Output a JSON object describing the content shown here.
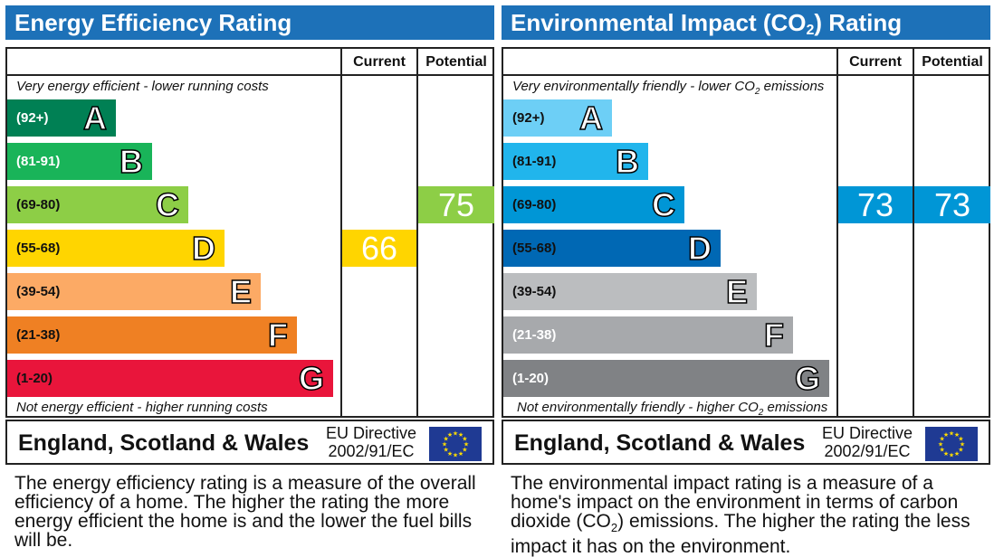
{
  "panels": [
    {
      "id": "energy",
      "title": "Energy Efficiency Rating",
      "col_current": "Current",
      "col_potential": "Potential",
      "top_note": "Very energy efficient - lower running costs",
      "bottom_note": "Not energy efficient - higher running costs",
      "region": "England, Scotland & Wales",
      "directive_line1": "EU Directive",
      "directive_line2": "2002/91/EC",
      "description": "The energy efficiency rating is a measure of the overall efficiency of a home. The higher the rating the more energy efficient the home is and the lower the fuel bills will be."
    },
    {
      "id": "env",
      "title_pre": "Environmental Impact (CO",
      "title_sub": "2",
      "title_post": ") Rating",
      "col_current": "Current",
      "col_potential": "Potential",
      "top_note_pre": "Very environmentally friendly - lower CO",
      "top_note_sub": "2",
      "top_note_post": " emissions",
      "bottom_note_pre": "Not environmentally friendly - higher CO",
      "bottom_note_sub": "2",
      "bottom_note_post": " emissions",
      "region": "England, Scotland & Wales",
      "directive_line1": "EU Directive",
      "directive_line2": "2002/91/EC",
      "description_pre": "The environmental impact rating is a measure of a home's impact on the environment in terms of carbon dioxide (CO",
      "description_sub": "2",
      "description_post": ") emissions. The higher the rating the less impact it has on the environment."
    }
  ],
  "chart_data": [
    {
      "type": "bar",
      "title": "Energy Efficiency Rating",
      "categories": [
        "A",
        "B",
        "C",
        "D",
        "E",
        "F",
        "G"
      ],
      "ranges": [
        "(92+)",
        "(81-91)",
        "(69-80)",
        "(55-68)",
        "(39-54)",
        "(21-38)",
        "(1-20)"
      ],
      "colors": [
        "#008054",
        "#19b459",
        "#8dce46",
        "#ffd500",
        "#fcaa65",
        "#ef8023",
        "#e9153b"
      ],
      "range_text_colors": [
        "#ffffff",
        "#ffffff",
        "#111111",
        "#111111",
        "#111111",
        "#111111",
        "#111111"
      ],
      "current": 66,
      "current_band": "D",
      "current_color": "#ffd500",
      "potential": 75,
      "potential_band": "C",
      "potential_color": "#8dce46"
    },
    {
      "type": "bar",
      "title": "Environmental Impact (CO2) Rating",
      "categories": [
        "A",
        "B",
        "C",
        "D",
        "E",
        "F",
        "G"
      ],
      "ranges": [
        "(92+)",
        "(81-91)",
        "(69-80)",
        "(55-68)",
        "(39-54)",
        "(21-38)",
        "(1-20)"
      ],
      "colors": [
        "#6dcff6",
        "#21b5ec",
        "#0096d6",
        "#0068b4",
        "#bbbdbf",
        "#a7a9ac",
        "#808285"
      ],
      "range_text_colors": [
        "#111111",
        "#111111",
        "#111111",
        "#111111",
        "#111111",
        "#ffffff",
        "#ffffff"
      ],
      "current": 73,
      "current_band": "C",
      "current_color": "#0096d6",
      "potential": 73,
      "potential_band": "C",
      "potential_color": "#0096d6"
    }
  ]
}
